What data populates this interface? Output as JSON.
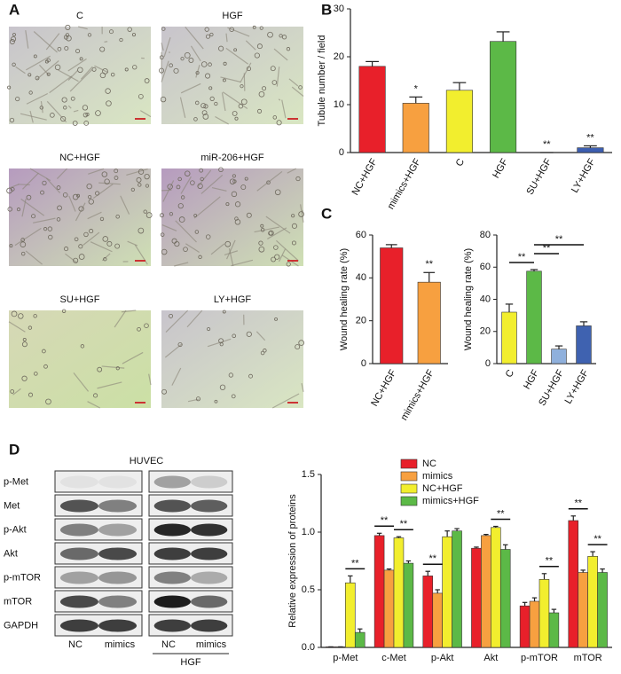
{
  "panel_labels": [
    "A",
    "B",
    "C",
    "D"
  ],
  "micrographs": [
    "C",
    "HGF",
    "NC+HGF",
    "miR-206+HGF",
    "SU+HGF",
    "LY+HGF"
  ],
  "blot": {
    "title": "HUVEC",
    "rows": [
      "p-Met",
      "Met",
      "p-Akt",
      "Akt",
      "p-mTOR",
      "mTOR",
      "GAPDH"
    ],
    "lanes": [
      "NC",
      "mimics",
      "NC",
      "mimics"
    ],
    "group": "HGF"
  },
  "chart_data": [
    {
      "type": "bar",
      "y_label": "Tubule number / field",
      "categories": [
        "NC+HGF",
        "mimics+HGF",
        "C",
        "HGF",
        "SU+HGF",
        "LY+HGF"
      ],
      "values": [
        18,
        10.3,
        13,
        23.2,
        0,
        1
      ],
      "errors": [
        1,
        1.3,
        1.6,
        2,
        0,
        0.4
      ],
      "colors": [
        "#e8202a",
        "#f7a040",
        "#f2ee2e",
        "#5cb947",
        "#8fb0dc",
        "#3c5eb0"
      ],
      "ylim": [
        0,
        30
      ],
      "yticks": [
        0,
        10,
        20,
        30
      ],
      "annotations": [
        {
          "text": "*",
          "index": 1
        },
        {
          "text": "**",
          "index": 4
        },
        {
          "text": "**",
          "index": 5
        }
      ]
    },
    {
      "type": "bar",
      "y_label": "Wound healing rate (%)",
      "categories": [
        "NC+HGF",
        "mimics+HGF"
      ],
      "values": [
        54,
        38
      ],
      "errors": [
        1.5,
        4.5
      ],
      "colors": [
        "#e8202a",
        "#f7a040"
      ],
      "ylim": [
        0,
        60
      ],
      "yticks": [
        0,
        20,
        40,
        60
      ],
      "annotations": [
        {
          "text": "**",
          "index": 1
        }
      ]
    },
    {
      "type": "bar",
      "y_label": "Wound healing rate (%)",
      "categories": [
        "C",
        "HGF",
        "SU+HGF",
        "LY+HGF"
      ],
      "values": [
        32,
        57.5,
        9,
        23.5
      ],
      "errors": [
        5,
        1,
        2,
        2.5
      ],
      "colors": [
        "#f2ee2e",
        "#5cb947",
        "#8fb0dc",
        "#3f62b0"
      ],
      "ylim": [
        0,
        80
      ],
      "yticks": [
        0,
        20,
        40,
        60,
        80
      ],
      "brackets": [
        {
          "text": "**",
          "from": 0,
          "to": 1
        },
        {
          "text": "**",
          "from": 1,
          "to": 2
        },
        {
          "text": "**",
          "from": 1,
          "to": 3
        }
      ]
    },
    {
      "type": "grouped_bar",
      "y_label": "Relative expression of proteins",
      "categories": [
        "p-Met",
        "c-Met",
        "p-Akt",
        "Akt",
        "p-mTOR",
        "mTOR"
      ],
      "series": [
        {
          "name": "NC",
          "color": "#e8202a",
          "values": [
            0.005,
            0.97,
            0.62,
            0.86,
            0.36,
            1.1
          ],
          "errors": [
            0,
            0.02,
            0.04,
            0.01,
            0.03,
            0.04
          ]
        },
        {
          "name": "mimics",
          "color": "#f7a040",
          "values": [
            0.005,
            0.67,
            0.47,
            0.97,
            0.4,
            0.65
          ],
          "errors": [
            0,
            0.01,
            0.03,
            0.01,
            0.03,
            0.02
          ]
        },
        {
          "name": "NC+HGF",
          "color": "#f2ee2e",
          "values": [
            0.56,
            0.95,
            0.96,
            1.04,
            0.59,
            0.79
          ],
          "errors": [
            0.06,
            0.01,
            0.05,
            0.01,
            0.05,
            0.04
          ]
        },
        {
          "name": "mimics+HGF",
          "color": "#5cb947",
          "values": [
            0.13,
            0.73,
            1.01,
            0.85,
            0.3,
            0.65
          ],
          "errors": [
            0.03,
            0.02,
            0.02,
            0.04,
            0.03,
            0.03
          ]
        }
      ],
      "ylim": [
        0,
        1.5
      ],
      "yticks": [
        {
          "value": 0,
          "label": "0.0"
        },
        0.5,
        {
          "value": 1,
          "label": "1.0"
        },
        1.5
      ],
      "brackets": [
        {
          "text": "**",
          "category": 0,
          "from": 2,
          "to": 3
        },
        {
          "text": "**",
          "category": 1,
          "from": 0,
          "to": 1
        },
        {
          "text": "**",
          "category": 1,
          "from": 2,
          "to": 3
        },
        {
          "text": "**",
          "category": 2,
          "from": 0,
          "to": 1
        },
        {
          "text": "**",
          "category": 3,
          "from": 2,
          "to": 3
        },
        {
          "text": "**",
          "category": 4,
          "from": 2,
          "to": 3
        },
        {
          "text": "**",
          "category": 5,
          "from": 0,
          "to": 1
        },
        {
          "text": "**",
          "category": 5,
          "from": 2,
          "to": 3
        }
      ]
    }
  ]
}
